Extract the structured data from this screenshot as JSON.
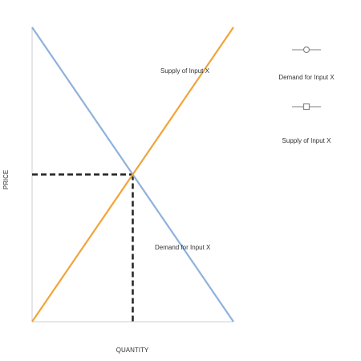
{
  "chart_data": {
    "type": "line",
    "xlabel": "QUANTITY",
    "ylabel": "PRICE",
    "xlim": [
      0,
      10
    ],
    "ylim": [
      0,
      10
    ],
    "series": [
      {
        "name": "Demand for Input X",
        "color": "#8fb1dc",
        "marker": "circle",
        "x": [
          0,
          10
        ],
        "y": [
          10,
          0
        ]
      },
      {
        "name": "Supply of Input X",
        "color": "#f0a43a",
        "marker": "square",
        "x": [
          0,
          10
        ],
        "y": [
          0,
          10
        ]
      }
    ],
    "equilibrium": {
      "x": 5,
      "y": 5,
      "color": "#222222"
    },
    "annotations": [
      {
        "text": "Supply of Input X",
        "series": "Supply of Input X"
      },
      {
        "text": "Demand for Input X",
        "series": "Demand for Input X"
      }
    ]
  }
}
